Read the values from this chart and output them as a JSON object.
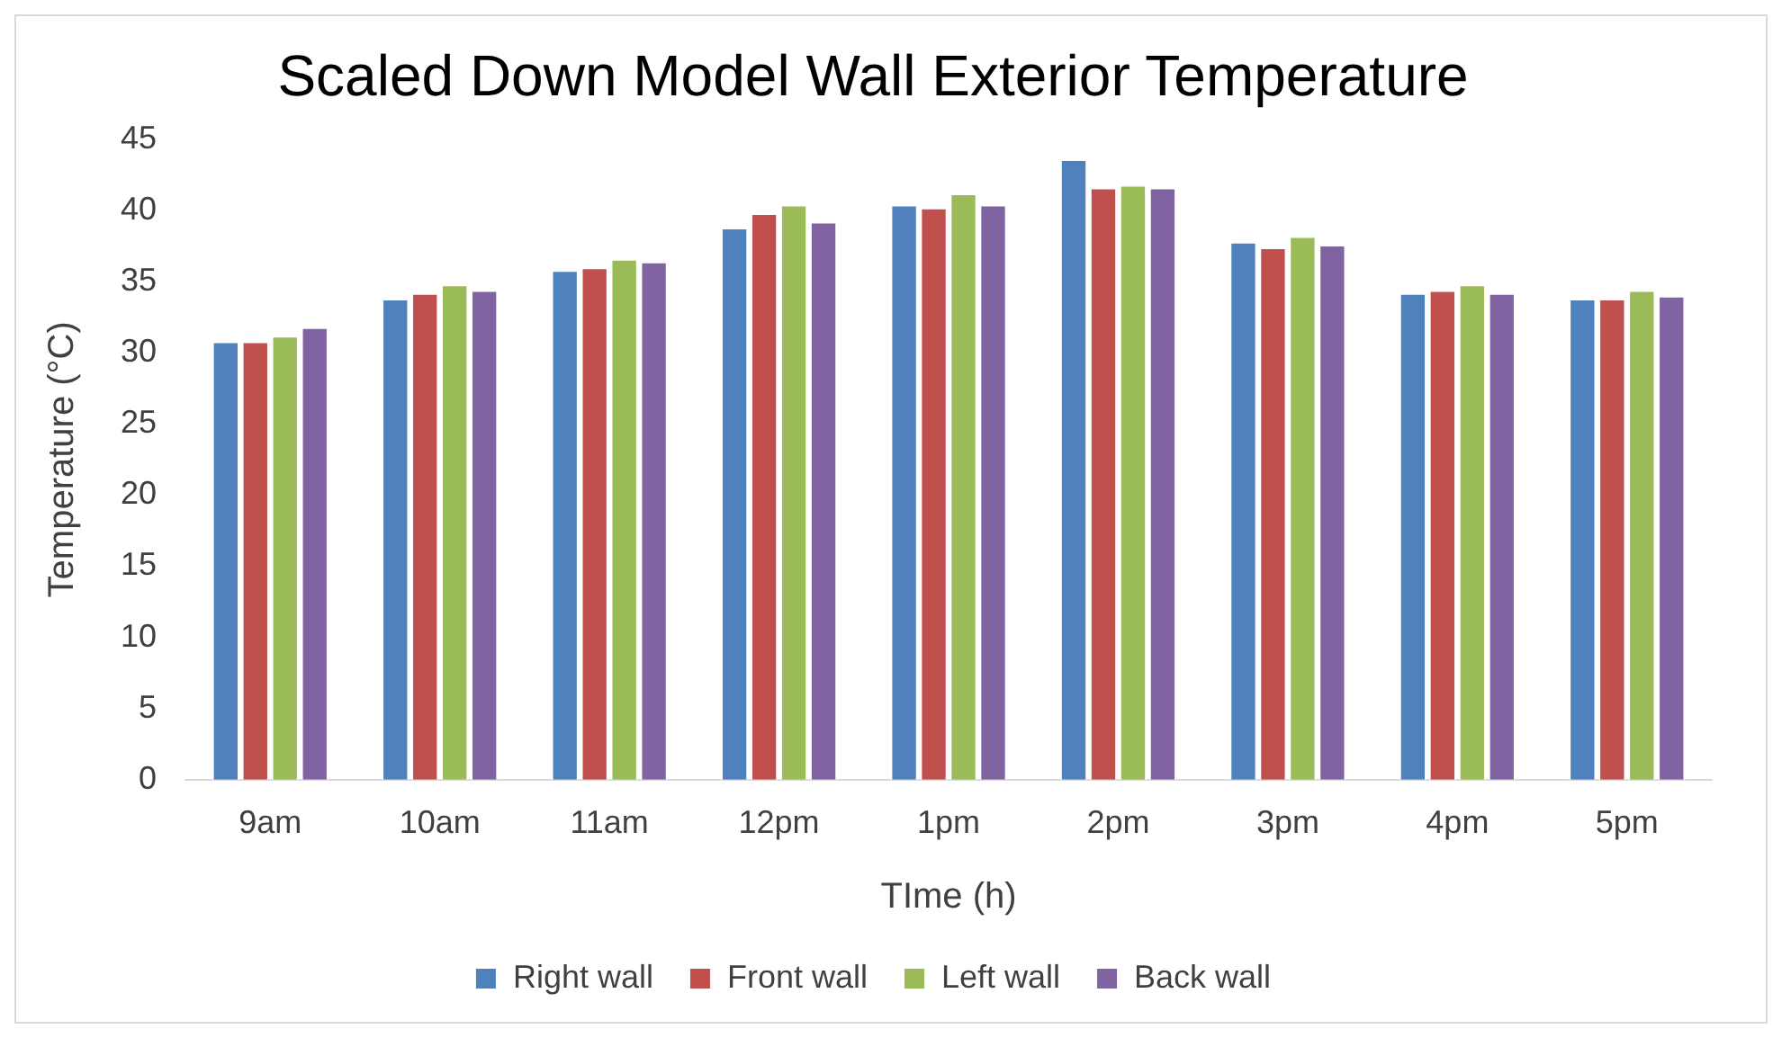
{
  "chart_data": {
    "type": "bar",
    "title": "Scaled Down Model Wall Exterior Temperature",
    "xlabel": "TIme (h)",
    "ylabel": "Temperature (°C)",
    "categories": [
      "9am",
      "10am",
      "11am",
      "12pm",
      "1pm",
      "2pm",
      "3pm",
      "4pm",
      "5pm"
    ],
    "series": [
      {
        "name": "Right wall",
        "color": "#4f81bd",
        "values": [
          30.8,
          33.8,
          35.8,
          38.8,
          40.4,
          43.6,
          37.8,
          34.2,
          33.8
        ]
      },
      {
        "name": "Front wall",
        "color": "#c0504d",
        "values": [
          30.8,
          34.2,
          36.0,
          39.8,
          40.2,
          41.6,
          37.4,
          34.4,
          33.8
        ]
      },
      {
        "name": "Left wall",
        "color": "#9bbb59",
        "values": [
          31.2,
          34.8,
          36.6,
          40.4,
          41.2,
          41.8,
          38.2,
          34.8,
          34.4
        ]
      },
      {
        "name": "Back wall",
        "color": "#8064a2",
        "values": [
          31.8,
          34.4,
          36.4,
          39.2,
          40.4,
          41.6,
          37.6,
          34.2,
          34.0
        ]
      }
    ],
    "ylim": [
      0,
      45
    ],
    "yticks": [
      0,
      5,
      10,
      15,
      20,
      25,
      30,
      35,
      40,
      45
    ],
    "grid": false,
    "legend": "bottom"
  }
}
